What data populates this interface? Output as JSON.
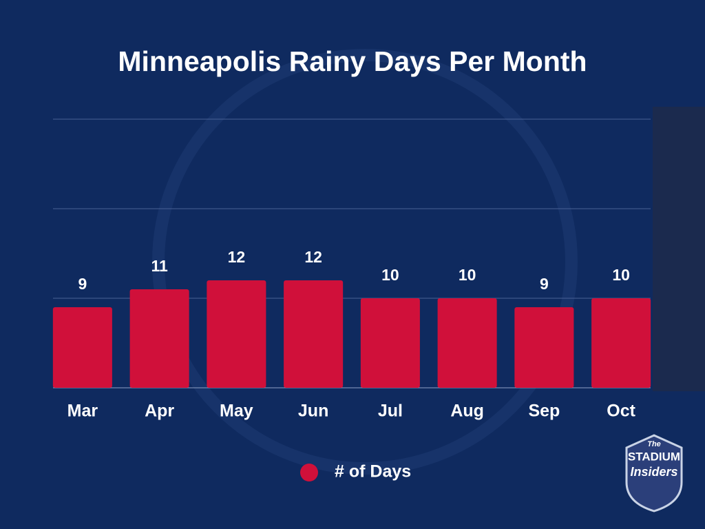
{
  "chart_data": {
    "type": "bar",
    "title": "Minneapolis Rainy Days Per Month",
    "categories": [
      "Mar",
      "Apr",
      "May",
      "Jun",
      "Jul",
      "Aug",
      "Sep",
      "Oct"
    ],
    "series": [
      {
        "name": "# of Days",
        "color": "#d0103a",
        "values": [
          9,
          11,
          12,
          12,
          10,
          10,
          9,
          10
        ]
      }
    ],
    "ylim": [
      0,
      30
    ],
    "yticks": [
      0,
      10,
      20,
      30
    ],
    "grid": true,
    "legend": "bottom"
  },
  "logo": {
    "line1": "The",
    "line2": "STADIUM",
    "line3": "Insiders"
  }
}
